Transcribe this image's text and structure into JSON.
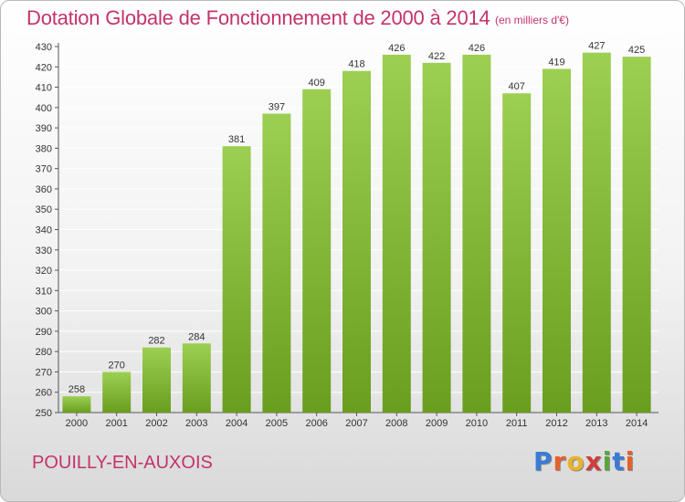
{
  "header": {
    "title": "Dotation Globale de Fonctionnement de 2000 à 2014",
    "unit": "(en milliers d'€)"
  },
  "footer": {
    "commune": "POUILLY-EN-AUXOIS",
    "logo": "Proxiti"
  },
  "colors": {
    "bar_light": "#9ccf52",
    "bar_dark": "#6a9e1e",
    "title": "#c4336b",
    "logo_letters": [
      "#3b7bd6",
      "#e5612a",
      "#e8b22c",
      "#d13b3b",
      "#5aa63c",
      "#3b7bd6",
      "#e5612a"
    ]
  },
  "chart_data": {
    "type": "bar",
    "title": "Dotation Globale de Fonctionnement de 2000 à 2014",
    "subtitle": "(en milliers d'€)",
    "xlabel": "",
    "ylabel": "",
    "categories": [
      "2000",
      "2001",
      "2002",
      "2003",
      "2004",
      "2005",
      "2006",
      "2007",
      "2008",
      "2009",
      "2010",
      "2011",
      "2012",
      "2013",
      "2014"
    ],
    "values": [
      258,
      270,
      282,
      284,
      381,
      397,
      409,
      418,
      426,
      422,
      426,
      407,
      419,
      427,
      425
    ],
    "ylim": [
      250,
      430
    ],
    "ytick_step": 10,
    "grid": true,
    "legend": "none"
  }
}
